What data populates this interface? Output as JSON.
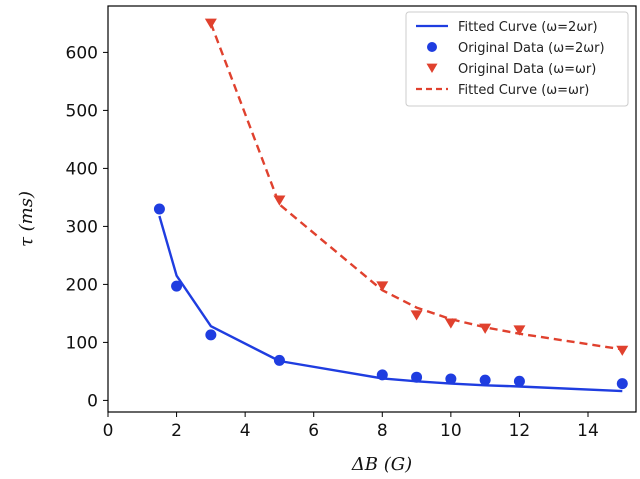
{
  "chart_data": {
    "type": "line",
    "title": "",
    "xlabel": "ΔB (G)",
    "ylabel": "τ (ms)",
    "xlim": [
      0,
      15.4
    ],
    "ylim": [
      -20,
      680
    ],
    "xticks": [
      0,
      2,
      4,
      6,
      8,
      10,
      12,
      14
    ],
    "yticks": [
      0,
      100,
      200,
      300,
      400,
      500,
      600
    ],
    "grid": false,
    "legend_position": "top-right",
    "series": [
      {
        "name": "Fitted Curve (ω=2ωr)",
        "kind": "line",
        "style": "solid",
        "color": "#1f3de0",
        "x": [
          1.5,
          2,
          3,
          5,
          8,
          9,
          10,
          11,
          12,
          15
        ],
        "y": [
          318,
          215,
          128,
          68,
          38,
          33,
          29,
          26,
          24,
          16
        ]
      },
      {
        "name": "Original Data (ω=2ωr)",
        "kind": "scatter",
        "marker": "circle",
        "color": "#1f3de0",
        "x": [
          1.5,
          2,
          3,
          5,
          8,
          9,
          10,
          11,
          12,
          15
        ],
        "y": [
          330,
          197,
          113,
          69,
          44,
          40,
          37,
          35,
          33,
          29
        ]
      },
      {
        "name": "Original Data (ω=ωr)",
        "kind": "scatter",
        "marker": "triangle-down",
        "color": "#e0412e",
        "x": [
          3,
          5,
          8,
          9,
          10,
          11,
          12,
          15
        ],
        "y": [
          650,
          345,
          197,
          147,
          133,
          124,
          121,
          86
        ]
      },
      {
        "name": "Fitted Curve (ω=ωr)",
        "kind": "line",
        "style": "dashed",
        "color": "#e0412e",
        "x": [
          3,
          5,
          8,
          9,
          10,
          11,
          12,
          15
        ],
        "y": [
          650,
          338,
          190,
          160,
          140,
          126,
          115,
          88
        ]
      }
    ]
  }
}
